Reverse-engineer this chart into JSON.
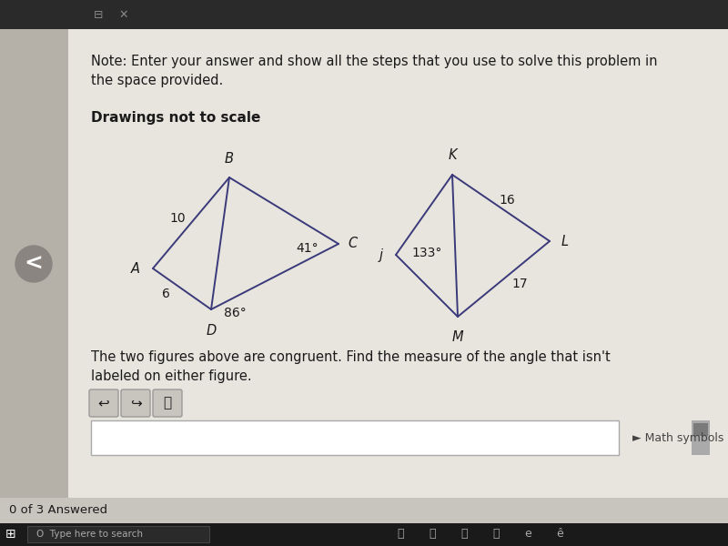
{
  "bg_main": "#ddd9d0",
  "bg_content": "#e8e5de",
  "bg_topbar": "#2a2a2a",
  "bg_leftpanel": "#b5b0a8",
  "bg_statusbar": "#c8c5be",
  "bg_white": "#ffffff",
  "line_color": "#3a3a7a",
  "text_dark": "#1a1a1a",
  "text_medium": "#333333",
  "note_text": "Note: Enter your answer and show all the steps that you use to solve this problem in\nthe space provided.",
  "drawings_label": "Drawings not to scale",
  "question_text": "The two figures above are congruent. Find the measure of the angle that isn't\nlabeled on either figure.",
  "math_symbols_text": "► Math symbols",
  "answered_text": "0 of 3 Answered",
  "taskbar_text": "Type here to search",
  "fig1": {
    "B": [
      0.315,
      0.655
    ],
    "C": [
      0.465,
      0.54
    ],
    "D": [
      0.29,
      0.435
    ],
    "A": [
      0.21,
      0.51
    ],
    "label_B": [
      0.315,
      0.668,
      "B"
    ],
    "label_C": [
      0.477,
      0.538,
      "C"
    ],
    "label_D": [
      0.29,
      0.418,
      "D"
    ],
    "label_A": [
      0.196,
      0.51,
      "A"
    ],
    "label_10": [
      0.247,
      0.59,
      "10"
    ],
    "label_6": [
      0.218,
      0.465,
      "6"
    ],
    "label_41": [
      0.44,
      0.548,
      "41°"
    ],
    "label_86": [
      0.295,
      0.448,
      "86°"
    ]
  },
  "fig2": {
    "K": [
      0.62,
      0.63
    ],
    "L": [
      0.755,
      0.53
    ],
    "M": [
      0.628,
      0.428
    ],
    "J": [
      0.543,
      0.51
    ],
    "label_K": [
      0.62,
      0.645,
      "K"
    ],
    "label_L": [
      0.768,
      0.53,
      "L"
    ],
    "label_M": [
      0.628,
      0.412,
      "M"
    ],
    "label_j": [
      0.527,
      0.51,
      "j"
    ],
    "label_16": [
      0.693,
      0.595,
      "16"
    ],
    "label_17": [
      0.7,
      0.462,
      "17"
    ],
    "label_133": [
      0.566,
      0.51,
      "133°"
    ]
  }
}
